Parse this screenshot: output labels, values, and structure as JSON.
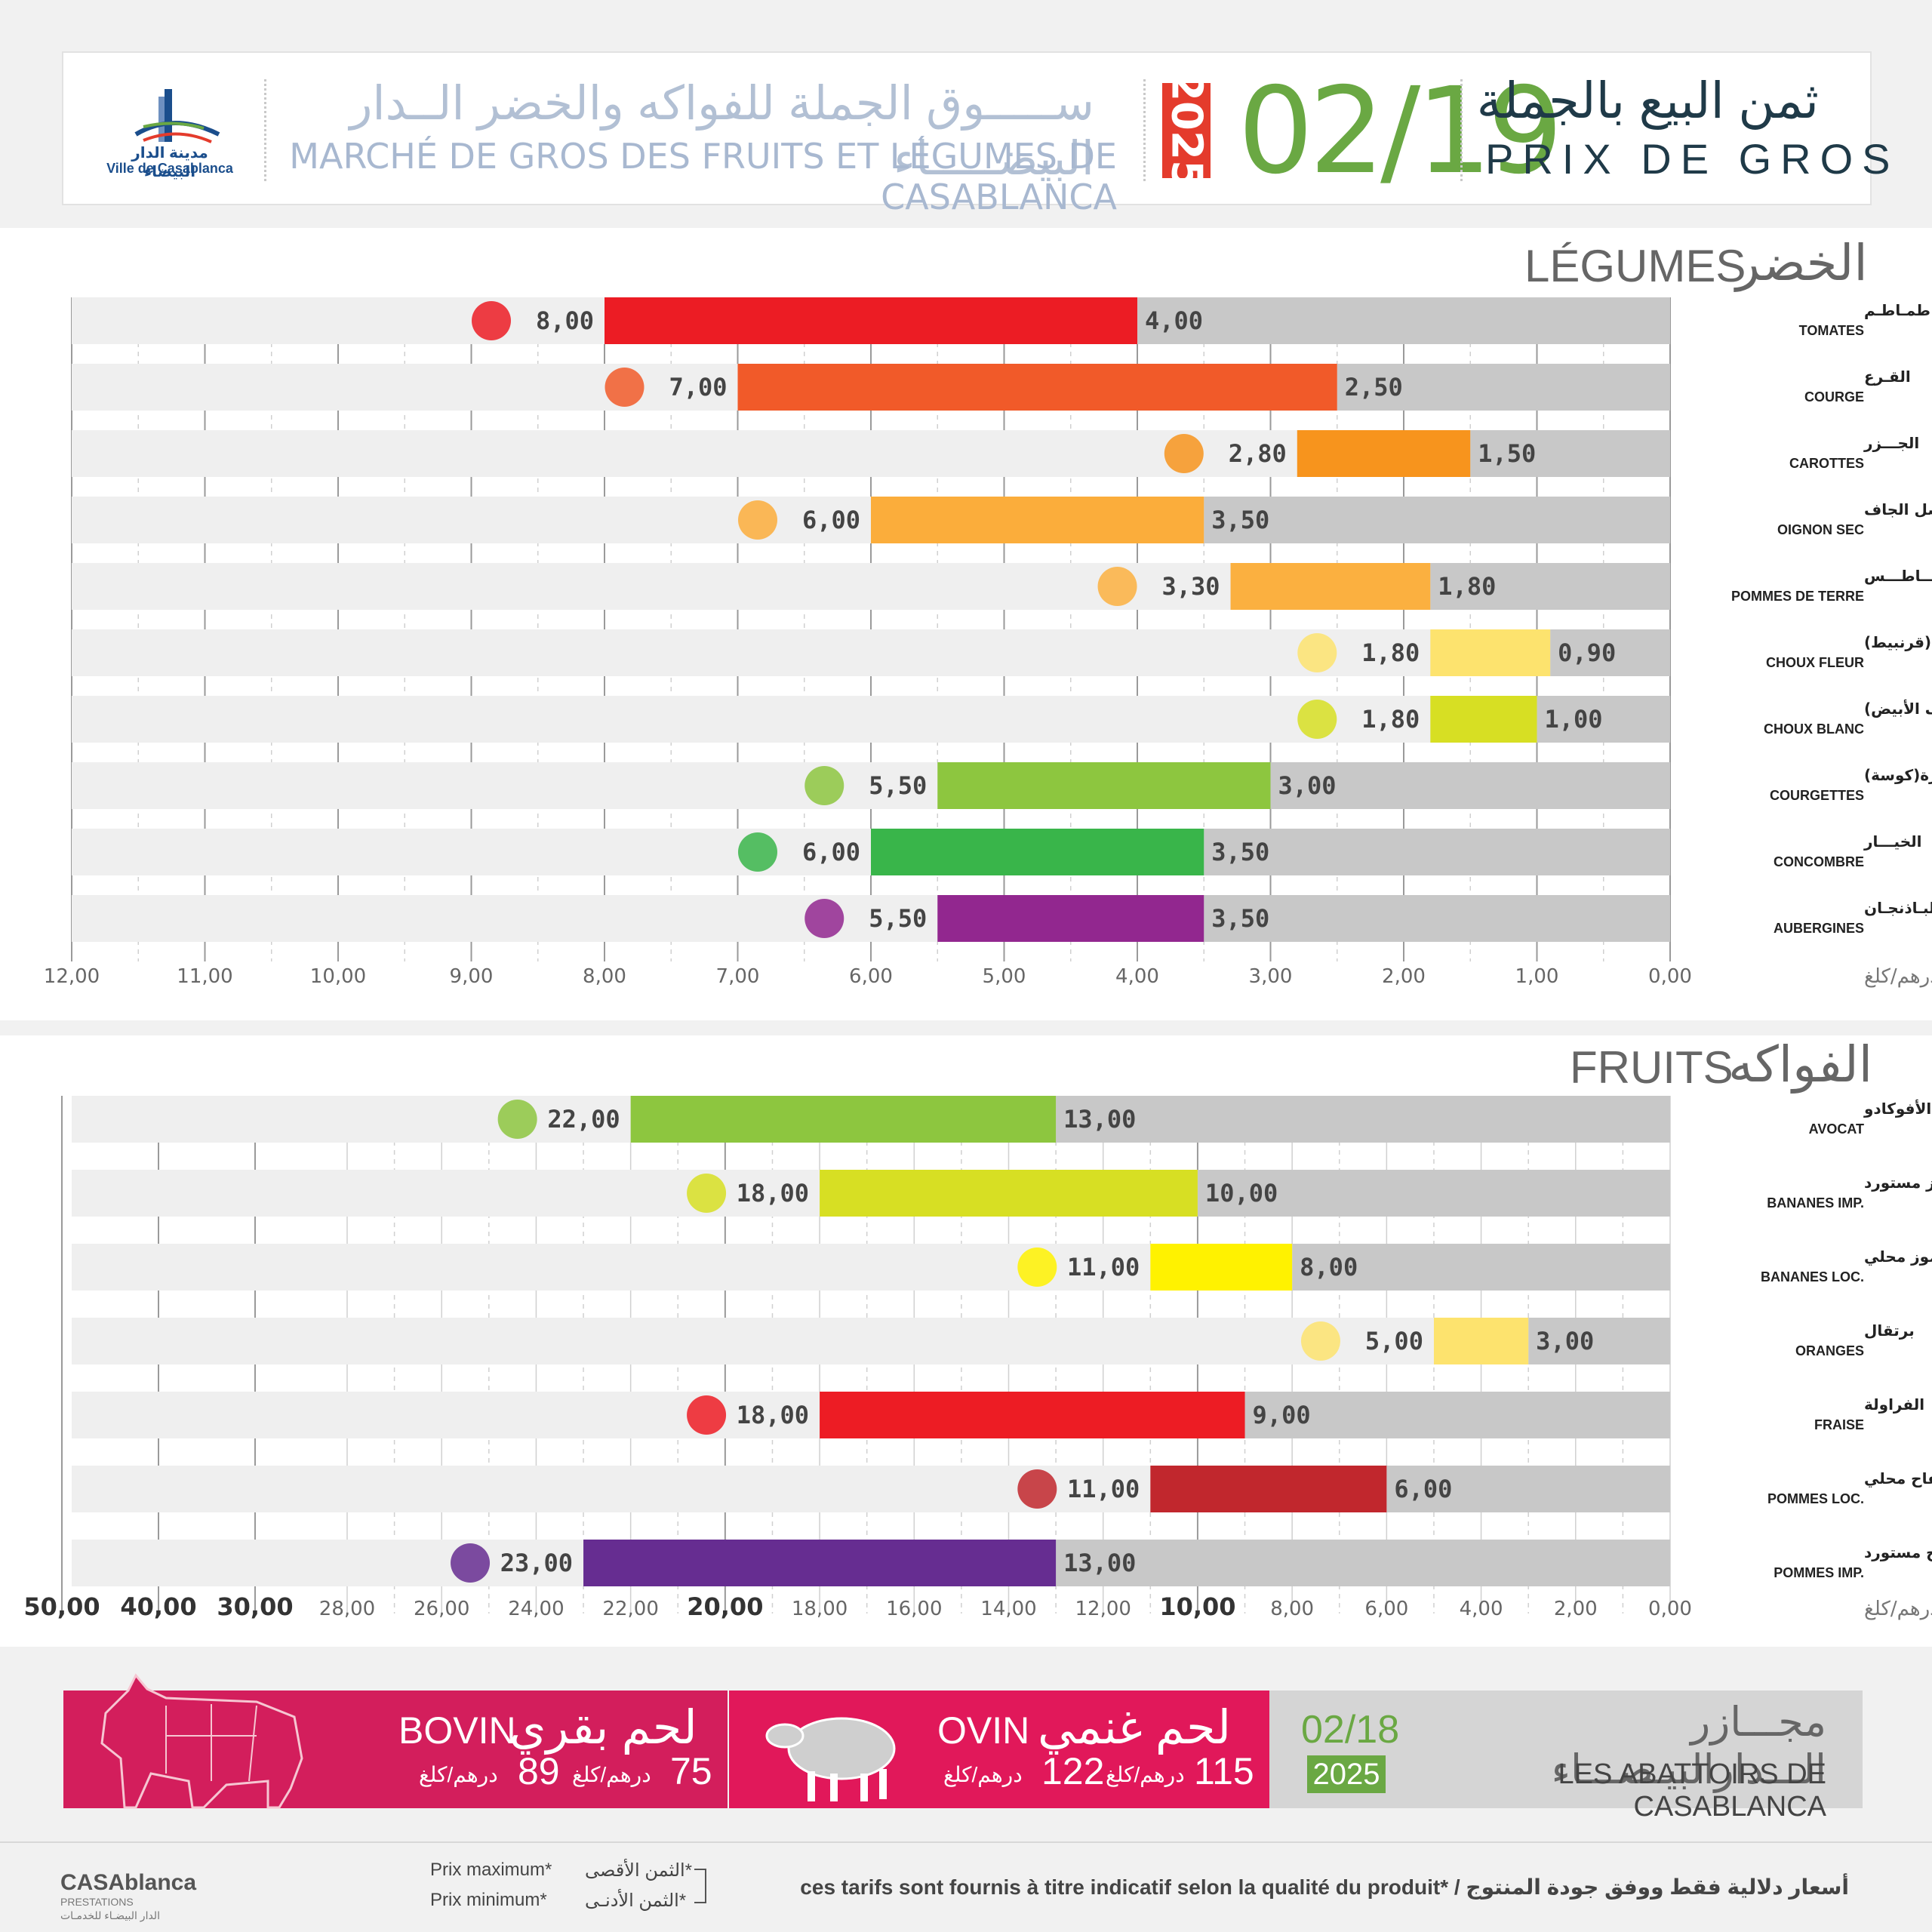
{
  "header": {
    "logo_ar": "مدينة الدار البيضاء",
    "logo_fr": "Ville de Casablanca",
    "market_ar": "ســـــوق الجملة للفواكه والخضر الــدار البيضـــــاء",
    "market_fr": "MARCHÉ DE GROS DES FRUITS ET LÉGUMES DE CASABLANCA",
    "year": "2025",
    "date": "02/19",
    "price_ar": "ثمن البيع بالجملة",
    "price_fr": "PRIX DE GROS"
  },
  "legumes": {
    "title_fr": "LÉGUMES",
    "title_ar": "الخضر",
    "unit": "درهم/كلغ"
  },
  "fruits": {
    "title_fr": "FRUITS",
    "title_ar": "الفواكه",
    "unit": "درهم/كلغ"
  },
  "colors": {
    "max_bar_gray": "#c8c8c8",
    "row_bg": "#efefef",
    "accent_green": "#6aa843",
    "meat_red": "#d31e5c"
  },
  "chart_data": [
    {
      "type": "bar",
      "orientation": "horizontal-right-to-left",
      "xlim": [
        0,
        12
      ],
      "ticks": [
        "12,00",
        "11,00",
        "10,00",
        "9,00",
        "8,00",
        "7,00",
        "6,00",
        "5,00",
        "4,00",
        "3,00",
        "2,00",
        "1,00",
        "0,00"
      ],
      "categories_ar": [
        "طمـاطـم",
        "القـرع",
        "الجـــزر",
        "البصل الجاف",
        "بطــاطـــس",
        "شفلـور (قرنبيط)",
        "كرومب (الملفوف الأبيض)",
        "قرعة خضرة(كوسة)",
        "الخيـــار",
        "البـاذنجـان"
      ],
      "categories_fr": [
        "TOMATES",
        "COURGE",
        "CAROTTES",
        "OIGNON SEC",
        "POMMES DE TERRE",
        "CHOUX FLEUR",
        "CHOUX BLANC",
        "COURGETTES",
        "CONCOMBRE",
        "AUBERGINES"
      ],
      "series": [
        {
          "name": "Prix maximum",
          "values": [
            8.0,
            7.0,
            2.8,
            6.0,
            3.3,
            1.8,
            1.8,
            5.5,
            6.0,
            5.5
          ]
        },
        {
          "name": "Prix minimum",
          "values": [
            4.0,
            2.5,
            1.5,
            3.5,
            1.8,
            0.9,
            1.0,
            3.0,
            3.5,
            3.5
          ]
        }
      ],
      "labels_max": [
        "8,00",
        "7,00",
        "2,80",
        "6,00",
        "3,30",
        "1,80",
        "1,80",
        "5,50",
        "6,00",
        "5,50"
      ],
      "labels_min": [
        "4,00",
        "2,50",
        "1,50",
        "3,50",
        "1,80",
        "0,90",
        "1,00",
        "3,00",
        "3,50",
        "3,50"
      ],
      "bar_colors": [
        "#ec1c24",
        "#f15a29",
        "#f7941d",
        "#fbad3b",
        "#fbb040",
        "#fde36e",
        "#d7df23",
        "#8dc63f",
        "#39b54a",
        "#92278f"
      ]
    },
    {
      "type": "bar",
      "orientation": "horizontal-right-to-left",
      "xlim": [
        0,
        50
      ],
      "ticks": [
        "50,00",
        "40,00",
        "30,00",
        "28,00",
        "26,00",
        "24,00",
        "22,00",
        "20,00",
        "18,00",
        "16,00",
        "14,00",
        "12,00",
        "10,00",
        "8,00",
        "6,00",
        "4,00",
        "2,00",
        "0,00"
      ],
      "categories_ar": [
        "الأفوكادو",
        "موز مستورد",
        "موز محلي",
        "برتقال",
        "الفراولة",
        "تفاح محلي",
        "تفاح مستورد"
      ],
      "categories_fr": [
        "AVOCAT",
        "BANANES IMP.",
        "BANANES LOC.",
        "ORANGES",
        "FRAISE",
        "POMMES LOC.",
        "POMMES IMP."
      ],
      "series": [
        {
          "name": "Prix maximum",
          "values": [
            22.0,
            18.0,
            11.0,
            5.0,
            18.0,
            11.0,
            23.0
          ]
        },
        {
          "name": "Prix minimum",
          "values": [
            13.0,
            10.0,
            8.0,
            3.0,
            9.0,
            6.0,
            13.0
          ]
        }
      ],
      "labels_max": [
        "22,00",
        "18,00",
        "11,00",
        "5,00",
        "18,00",
        "11,00",
        "23,00"
      ],
      "labels_min": [
        "13,00",
        "10,00",
        "8,00",
        "3,00",
        "9,00",
        "6,00",
        "13,00"
      ],
      "bar_colors": [
        "#8dc63f",
        "#d7df23",
        "#fff200",
        "#fde36e",
        "#ed1c24",
        "#c1272d",
        "#662d91"
      ]
    }
  ],
  "meat": {
    "bovin_fr": "BOVIN",
    "bovin_ar": "لحم بقري",
    "bovin_min": "75",
    "bovin_max": "89",
    "ovin_fr": "OVIN",
    "ovin_ar": "لحم غنمي",
    "ovin_min": "115",
    "ovin_max": "122",
    "unit": "درهم/كلغ",
    "abattoir_ar": "مجـــازر الـــدارالبيـضـــاء",
    "abattoir_fr": "LES ABATTOIRS DE CASABLANCA",
    "abattoir_date": "02/18",
    "abattoir_year": "2025"
  },
  "footer": {
    "brand": "CASAblanca",
    "brand_sub": "PRESTATIONS",
    "brand_ar": "الدار البيضـاء للخدمـات",
    "legend_max_fr": "Prix maximum*",
    "legend_min_fr": "Prix minimum*",
    "legend_max_ar": "*الثمن الأقصى",
    "legend_min_ar": "*الثمن الأدنـى",
    "note": "أسعار دلالية فقط ووفق جودة المنتوج / *ces tarifs sont fournis à titre indicatif selon la qualité du produit"
  }
}
